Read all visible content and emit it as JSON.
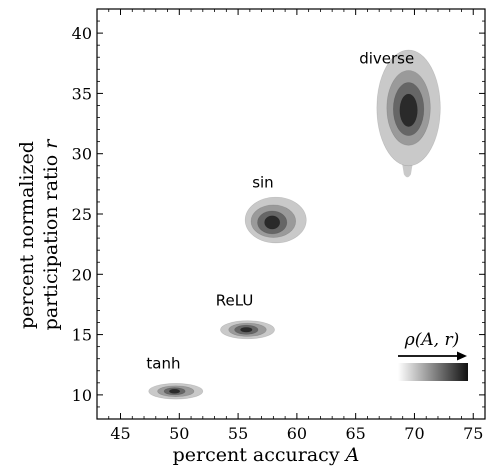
{
  "chart_data": {
    "type": "contour",
    "xlabel": "percent accuracy A",
    "ylabel_line1": "percent normalized",
    "ylabel_line2": "participation ratio r",
    "xlim": [
      43,
      76
    ],
    "ylim": [
      8,
      42
    ],
    "xticks": [
      45,
      50,
      55,
      60,
      65,
      70,
      75
    ],
    "yticks": [
      10,
      15,
      20,
      25,
      30,
      35,
      40
    ],
    "grid": false,
    "legend": {
      "label": "ρ(A, r)",
      "placement": "bottom-right",
      "gradient_from": "#ffffff",
      "gradient_to": "#111111"
    },
    "level_colors": [
      "#c9c9c9",
      "#9a9a9a",
      "#666666",
      "#2a2a2a"
    ],
    "clusters": [
      {
        "name": "tanh",
        "center": [
          49.7,
          10.3
        ],
        "label_pos": [
          47.2,
          12.2
        ],
        "levels": [
          {
            "rx": 2.3,
            "ry": 0.65,
            "dx": 0.0,
            "dy": 0.0
          },
          {
            "rx": 1.55,
            "ry": 0.45,
            "dx": 0.0,
            "dy": 0.0
          },
          {
            "rx": 0.9,
            "ry": 0.3,
            "dx": -0.1,
            "dy": 0.0
          },
          {
            "rx": 0.45,
            "ry": 0.18,
            "dx": -0.1,
            "dy": 0.0
          }
        ]
      },
      {
        "name": "ReLU",
        "center": [
          55.8,
          15.4
        ],
        "label_pos": [
          53.1,
          17.4
        ],
        "levels": [
          {
            "rx": 2.3,
            "ry": 0.75,
            "dx": 0.0,
            "dy": 0.0
          },
          {
            "rx": 1.6,
            "ry": 0.55,
            "dx": 0.0,
            "dy": 0.0
          },
          {
            "rx": 1.0,
            "ry": 0.38,
            "dx": -0.1,
            "dy": 0.0
          },
          {
            "rx": 0.5,
            "ry": 0.2,
            "dx": -0.1,
            "dy": 0.0
          }
        ]
      },
      {
        "name": "sin",
        "center": [
          58.0,
          24.3
        ],
        "label_pos": [
          56.2,
          27.2
        ],
        "levels": [
          {
            "rx": 2.6,
            "ry": 1.9,
            "dx": 0.2,
            "dy": 0.2
          },
          {
            "rx": 1.9,
            "ry": 1.35,
            "dx": 0.0,
            "dy": 0.1
          },
          {
            "rx": 1.25,
            "ry": 0.95,
            "dx": -0.1,
            "dy": 0.0
          },
          {
            "rx": 0.65,
            "ry": 0.55,
            "dx": -0.1,
            "dy": 0.0
          }
        ]
      },
      {
        "name": "diverse",
        "center": [
          69.5,
          33.6
        ],
        "label_pos": [
          65.3,
          37.5
        ],
        "levels": [
          {
            "rx": 2.7,
            "ry": 4.8,
            "dx": 0.0,
            "dy": 0.2
          },
          {
            "rx": 1.85,
            "ry": 3.1,
            "dx": 0.0,
            "dy": 0.2
          },
          {
            "rx": 1.3,
            "ry": 2.2,
            "dx": 0.0,
            "dy": 0.1
          },
          {
            "rx": 0.75,
            "ry": 1.35,
            "dx": 0.0,
            "dy": 0.0
          }
        ],
        "tail": {
          "x": 69.4,
          "y_top": 31.0,
          "y_bottom": 28.0,
          "half_width": 0.75
        }
      }
    ]
  }
}
